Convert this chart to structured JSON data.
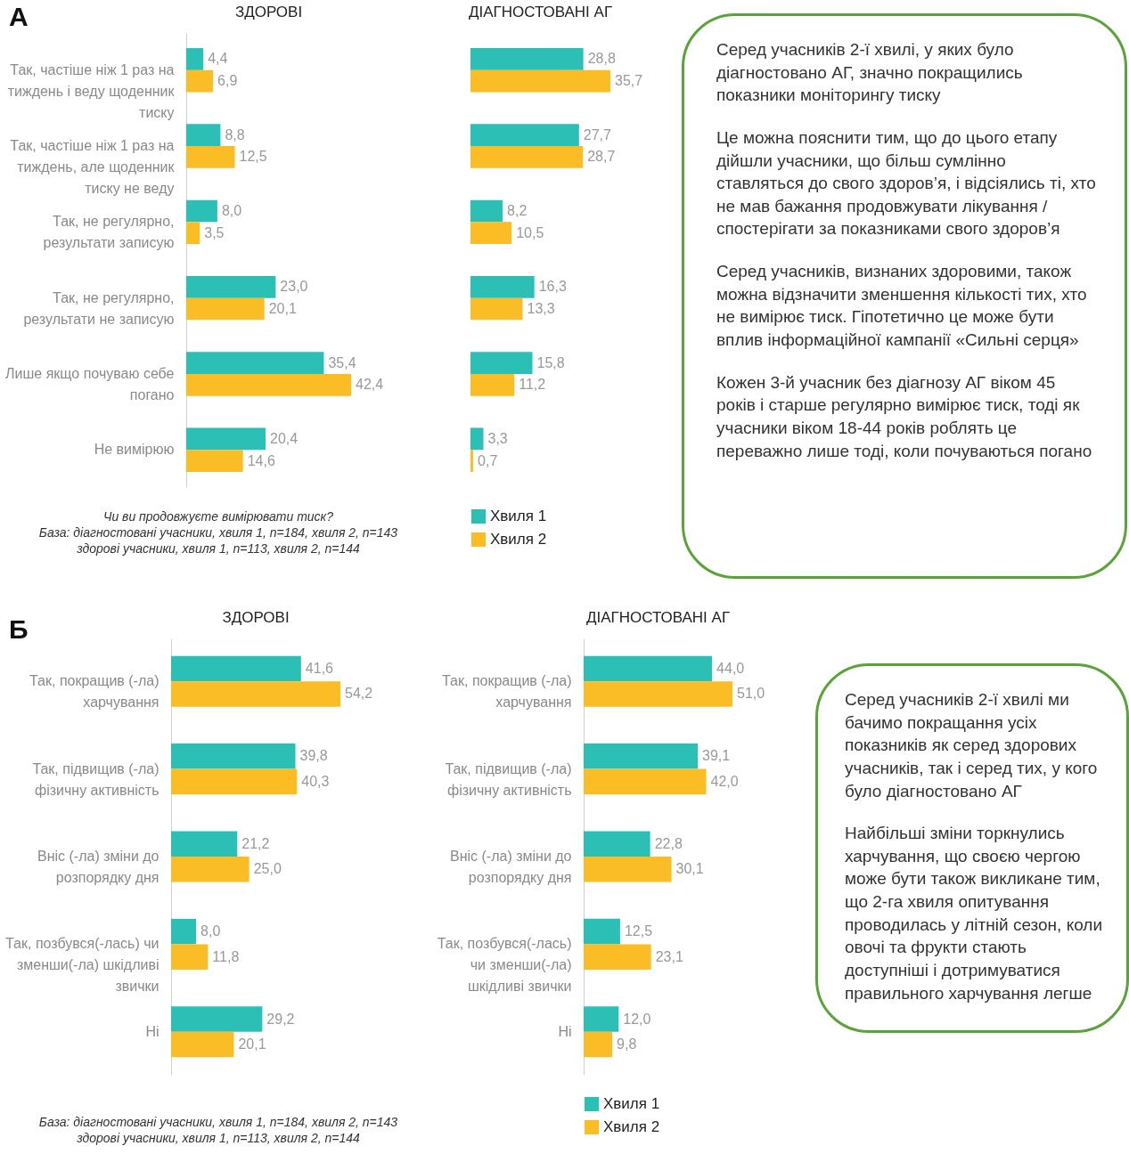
{
  "chart_data": [
    {
      "type": "bar",
      "orientation": "horizontal",
      "title": "ЗДОРОВІ",
      "tick_labels": "y",
      "categories": [
        "Так, частіше ніж 1 раз на тиждень і веду щоденник тиску",
        "Так, частіше ніж 1 раз на тиждень, але щоденник тиску не веду",
        "Так, не регулярно, результати записую",
        "Так, не регулярно, результати не записую",
        "Лише якщо почуваю себе погано",
        "Не вимірюю"
      ],
      "series": [
        {
          "color": "#2bbfb6",
          "values": [
            4.4,
            8.8,
            8.0,
            23.0,
            35.4,
            20.4
          ],
          "value_labels": [
            "4,4",
            "8,8",
            "8,0",
            "23,0",
            "35,4",
            "20,4"
          ]
        },
        {
          "color": "#fbbd25",
          "values": [
            6.9,
            12.5,
            3.5,
            20.1,
            42.4,
            14.6
          ],
          "value_labels": [
            "6,9",
            "12,5",
            "3,5",
            "20,1",
            "42,4",
            "14,6"
          ]
        }
      ],
      "annotations": [
        "А",
        "Чи ви продовжуєте вимірювати тиск?",
        "База: діагностовані учасники, хвиля 1, n=184, хвиля 2, n=143",
        "здорові учасники, хвиля 1, n=113, хвиля 2, n=144"
      ]
    },
    {
      "type": "bar",
      "orientation": "horizontal",
      "title": "ДІАГНОСТОВАНІ АГ",
      "tick_labels": false,
      "legend": "bottom",
      "categories": [
        null,
        null,
        null,
        null,
        null,
        null
      ],
      "series": [
        {
          "name": "Хвиля 1",
          "color": "#2bbfb6",
          "values": [
            28.8,
            27.7,
            8.2,
            16.3,
            15.8,
            3.3
          ],
          "value_labels": [
            "28,8",
            "27,7",
            "8,2",
            "16,3",
            "15,8",
            "3,3"
          ]
        },
        {
          "name": "Хвиля 2",
          "color": "#fbbd25",
          "values": [
            35.7,
            28.7,
            10.5,
            13.3,
            11.2,
            0.7
          ],
          "value_labels": [
            "35,7",
            "28,7",
            "10,5",
            "13,3",
            "11,2",
            "0,7"
          ]
        }
      ]
    },
    {
      "type": "other",
      "annotations": [
        "Серед учасників 2-ї хвилі, у яких було діагностовано АГ, значно покращились показники моніторингу тиску",
        "Це можна пояснити тим, що до цього етапу дійшли учасники, що більш сумлінно ставляться до свого здоров’я, і відсіялись ті, хто не мав бажання продовжувати лікування / спостерігати за показниками свого здоров’я",
        "Серед учасників, визнаних здоровими, також можна відзначити зменшення кількості тих, хто не вимірює тиск. Гіпотетично це може бути вплив інформаційної кампанії «Сильні серця»",
        "Кожен 3-й учасник без діагнозу АГ віком 45 років і старше регулярно вимірює тиск, тоді як учасники віком 18-44 років роблять це переважно лише тоді, коли почуваються погано"
      ]
    },
    {
      "type": "bar",
      "orientation": "horizontal",
      "title": "ЗДОРОВІ",
      "tick_labels": "y",
      "categories": [
        "Так, покращив (-ла) харчування",
        "Так, підвищив (-ла) фізичну активність",
        "Вніс (-ла) зміни до розпорядку дня",
        "Так, позбувся(-лась) чи зменши(-ла) шкідливі звички",
        "Ні"
      ],
      "series": [
        {
          "color": "#2bbfb6",
          "values": [
            41.6,
            39.8,
            21.2,
            8.0,
            29.2
          ],
          "value_labels": [
            "41,6",
            "39,8",
            "21,2",
            "8,0",
            "29,2"
          ]
        },
        {
          "color": "#fbbd25",
          "values": [
            54.2,
            40.3,
            25.0,
            11.8,
            20.1
          ],
          "value_labels": [
            "54,2",
            "40,3",
            "25,0",
            "11,8",
            "20,1"
          ]
        }
      ],
      "annotations": [
        "Б",
        "База: діагностовані учасники, хвиля 1, n=184, хвиля 2, n=143",
        "здорові учасники, хвиля 1, n=113, хвиля 2, n=144"
      ]
    },
    {
      "type": "bar",
      "orientation": "horizontal",
      "title": "ДІАГНОСТОВАНІ АГ",
      "tick_labels": "y",
      "legend": "bottom",
      "categories": [
        "Так, покращив (-ла) харчування",
        "Так, підвищив (-ла) фізичну активність",
        "Вніс (-ла) зміни до розпорядку дня",
        "Так, позбувся(-лась) чи зменши(-ла) шкідливі звички",
        "Ні"
      ],
      "series": [
        {
          "name": "Хвиля 1",
          "color": "#2bbfb6",
          "values": [
            44.0,
            39.1,
            22.8,
            12.5,
            12.0
          ],
          "value_labels": [
            "44,0",
            "39,1",
            "22,8",
            "12,5",
            "12,0"
          ]
        },
        {
          "name": "Хвиля 2",
          "color": "#fbbd25",
          "values": [
            51.0,
            42.0,
            30.1,
            23.1,
            9.8
          ],
          "value_labels": [
            "51,0",
            "42,0",
            "30,1",
            "23,1",
            "9,8"
          ]
        }
      ]
    },
    {
      "type": "other",
      "annotations": [
        "Серед учасників 2-ї хвилі ми бачимо покращання усіх показників як серед здорових учасників, так і серед тих, у кого було діагностовано АГ",
        "Найбільші зміни торкнулись харчування, що своєю чергою може бути також викликане тим, що 2-га хвиля опитування проводилась у літній сезон, коли овочі та фрукти стають доступніші і дотримуватися правильного харчування легше"
      ]
    }
  ]
}
